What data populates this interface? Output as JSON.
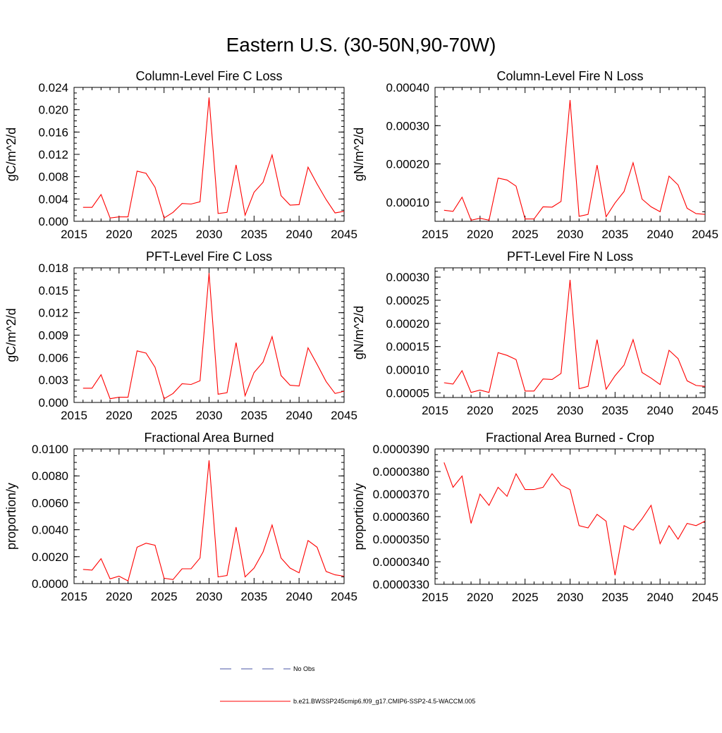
{
  "title": "Eastern U.S. (30-50N,90-70W)",
  "colors": {
    "series": "#ff0000",
    "no_obs": "#4a55a5",
    "axis": "#000000"
  },
  "legend": {
    "no_obs_label": "No Obs",
    "series_label": "b.e21.BWSSP245cmip6.f09_g17.CMIP6-SSP2-4.5-WACCM.005"
  },
  "chart_data": [
    {
      "id": "col-fire-c-loss",
      "type": "line",
      "title": "Column-Level Fire C Loss",
      "ylabel": "gC/m^2/d",
      "xlabel": "",
      "xlim": [
        2015,
        2045
      ],
      "ylim": [
        0,
        0.024
      ],
      "xticks": [
        "2015",
        "2020",
        "2025",
        "2030",
        "2035",
        "2040",
        "2045"
      ],
      "yticks": [
        "0.000",
        "0.004",
        "0.008",
        "0.012",
        "0.016",
        "0.020",
        "0.024"
      ],
      "x": [
        2016,
        2017,
        2018,
        2019,
        2020,
        2021,
        2022,
        2023,
        2024,
        2025,
        2026,
        2027,
        2028,
        2029,
        2030,
        2031,
        2032,
        2033,
        2034,
        2035,
        2036,
        2037,
        2038,
        2039,
        2040,
        2041,
        2042,
        2043,
        2044,
        2045
      ],
      "values": [
        0.0025,
        0.0025,
        0.0048,
        0.0006,
        0.0008,
        0.0008,
        0.009,
        0.0086,
        0.0061,
        0.0006,
        0.0016,
        0.0032,
        0.0031,
        0.0035,
        0.0222,
        0.0014,
        0.0016,
        0.0101,
        0.0011,
        0.0052,
        0.007,
        0.0119,
        0.0046,
        0.0029,
        0.003,
        0.0097,
        0.0067,
        0.0039,
        0.0015,
        0.0018
      ]
    },
    {
      "id": "col-fire-n-loss",
      "type": "line",
      "title": "Column-Level Fire N Loss",
      "ylabel": "gN/m^2/d",
      "xlabel": "",
      "xlim": [
        2015,
        2045
      ],
      "ylim": [
        5e-05,
        0.0004
      ],
      "xticks": [
        "2015",
        "2020",
        "2025",
        "2030",
        "2035",
        "2040",
        "2045"
      ],
      "yticks": [
        "0.00010",
        "0.00020",
        "0.00030",
        "0.00040"
      ],
      "ytick_values": [
        0.0001,
        0.0002,
        0.0003,
        0.0004
      ],
      "x": [
        2016,
        2017,
        2018,
        2019,
        2020,
        2021,
        2022,
        2023,
        2024,
        2025,
        2026,
        2027,
        2028,
        2029,
        2030,
        2031,
        2032,
        2033,
        2034,
        2035,
        2036,
        2037,
        2038,
        2039,
        2040,
        2041,
        2042,
        2043,
        2044,
        2045
      ],
      "values": [
        7.9e-05,
        7.6e-05,
        0.000113,
        5.3e-05,
        5.8e-05,
        5.3e-05,
        0.000163,
        0.000158,
        0.000142,
        5.6e-05,
        5.6e-05,
        8.8e-05,
        8.7e-05,
        0.000102,
        0.000367,
        6.3e-05,
        6.8e-05,
        0.000197,
        6.2e-05,
        9.8e-05,
        0.000128,
        0.000203,
        0.000108,
        8.8e-05,
        7.5e-05,
        0.000168,
        0.000145,
        8.4e-05,
        7e-05,
        6.8e-05
      ]
    },
    {
      "id": "pft-fire-c-loss",
      "type": "line",
      "title": "PFT-Level Fire C Loss",
      "ylabel": "gC/m^2/d",
      "xlabel": "",
      "xlim": [
        2015,
        2045
      ],
      "ylim": [
        0,
        0.018
      ],
      "xticks": [
        "2015",
        "2020",
        "2025",
        "2030",
        "2035",
        "2040",
        "2045"
      ],
      "yticks": [
        "0.000",
        "0.003",
        "0.006",
        "0.009",
        "0.012",
        "0.015",
        "0.018"
      ],
      "x": [
        2016,
        2017,
        2018,
        2019,
        2020,
        2021,
        2022,
        2023,
        2024,
        2025,
        2026,
        2027,
        2028,
        2029,
        2030,
        2031,
        2032,
        2033,
        2034,
        2035,
        2036,
        2037,
        2038,
        2039,
        2040,
        2041,
        2042,
        2043,
        2044,
        2045
      ],
      "values": [
        0.0019,
        0.0019,
        0.0037,
        0.0005,
        0.0007,
        0.0007,
        0.0069,
        0.0066,
        0.0047,
        0.0005,
        0.0012,
        0.0025,
        0.0024,
        0.0029,
        0.0173,
        0.0011,
        0.0013,
        0.008,
        0.0009,
        0.004,
        0.0054,
        0.0088,
        0.0036,
        0.0023,
        0.0022,
        0.0073,
        0.0051,
        0.0028,
        0.0012,
        0.0015
      ]
    },
    {
      "id": "pft-fire-n-loss",
      "type": "line",
      "title": "PFT-Level Fire N Loss",
      "ylabel": "gN/m^2/d",
      "xlabel": "",
      "xlim": [
        2015,
        2045
      ],
      "ylim": [
        4e-05,
        0.00032
      ],
      "xticks": [
        "2015",
        "2020",
        "2025",
        "2030",
        "2035",
        "2040",
        "2045"
      ],
      "yticks": [
        "0.00005",
        "0.00010",
        "0.00015",
        "0.00020",
        "0.00025",
        "0.00030"
      ],
      "ytick_values": [
        5e-05,
        0.0001,
        0.00015,
        0.0002,
        0.00025,
        0.0003
      ],
      "x": [
        2016,
        2017,
        2018,
        2019,
        2020,
        2021,
        2022,
        2023,
        2024,
        2025,
        2026,
        2027,
        2028,
        2029,
        2030,
        2031,
        2032,
        2033,
        2034,
        2035,
        2036,
        2037,
        2038,
        2039,
        2040,
        2041,
        2042,
        2043,
        2044,
        2045
      ],
      "values": [
        7.2e-05,
        6.9e-05,
        9.8e-05,
        5.1e-05,
        5.6e-05,
        5.1e-05,
        0.000137,
        0.000131,
        0.000122,
        5.4e-05,
        5.4e-05,
        8e-05,
        7.9e-05,
        9.2e-05,
        0.000294,
        5.9e-05,
        6.4e-05,
        0.000165,
        5.8e-05,
        8.7e-05,
        0.00011,
        0.000165,
        9.4e-05,
        8.2e-05,
        6.8e-05,
        0.000142,
        0.000124,
        7.6e-05,
        6.6e-05,
        6.4e-05
      ]
    },
    {
      "id": "frac-area-burned",
      "type": "line",
      "title": "Fractional Area Burned",
      "ylabel": "proportion/y",
      "xlabel": "",
      "xlim": [
        2015,
        2045
      ],
      "ylim": [
        0,
        0.01
      ],
      "xticks": [
        "2015",
        "2020",
        "2025",
        "2030",
        "2035",
        "2040",
        "2045"
      ],
      "yticks": [
        "0.0000",
        "0.0020",
        "0.0040",
        "0.0060",
        "0.0080",
        "0.0100"
      ],
      "x": [
        2016,
        2017,
        2018,
        2019,
        2020,
        2021,
        2022,
        2023,
        2024,
        2025,
        2026,
        2027,
        2028,
        2029,
        2030,
        2031,
        2032,
        2033,
        2034,
        2035,
        2036,
        2037,
        2038,
        2039,
        2040,
        2041,
        2042,
        2043,
        2044,
        2045
      ],
      "values": [
        0.00105,
        0.001,
        0.00185,
        0.00035,
        0.00055,
        0.0002,
        0.0027,
        0.003,
        0.00285,
        0.0004,
        0.0003,
        0.0011,
        0.0011,
        0.0019,
        0.00915,
        0.0005,
        0.0006,
        0.0042,
        0.0005,
        0.00115,
        0.00235,
        0.00435,
        0.0019,
        0.00115,
        0.0008,
        0.0032,
        0.0027,
        0.0009,
        0.00065,
        0.00055
      ]
    },
    {
      "id": "frac-area-burned-crop",
      "type": "line",
      "title": "Fractional Area Burned - Crop",
      "ylabel": "proportion/y",
      "xlabel": "",
      "xlim": [
        2015,
        2045
      ],
      "ylim": [
        3.3e-05,
        3.9e-05
      ],
      "xticks": [
        "2015",
        "2020",
        "2025",
        "2030",
        "2035",
        "2040",
        "2045"
      ],
      "yticks": [
        "0.0000330",
        "0.0000340",
        "0.0000350",
        "0.0000360",
        "0.0000370",
        "0.0000380",
        "0.0000390"
      ],
      "x": [
        2016,
        2017,
        2018,
        2019,
        2020,
        2021,
        2022,
        2023,
        2024,
        2025,
        2026,
        2027,
        2028,
        2029,
        2030,
        2031,
        2032,
        2033,
        2034,
        2035,
        2036,
        2037,
        2038,
        2039,
        2040,
        2041,
        2042,
        2043,
        2044,
        2045
      ],
      "values": [
        3.84e-05,
        3.73e-05,
        3.78e-05,
        3.57e-05,
        3.7e-05,
        3.65e-05,
        3.73e-05,
        3.69e-05,
        3.79e-05,
        3.72e-05,
        3.72e-05,
        3.73e-05,
        3.79e-05,
        3.74e-05,
        3.72e-05,
        3.56e-05,
        3.55e-05,
        3.61e-05,
        3.58e-05,
        3.34e-05,
        3.56e-05,
        3.54e-05,
        3.59e-05,
        3.65e-05,
        3.48e-05,
        3.56e-05,
        3.5e-05,
        3.57e-05,
        3.56e-05,
        3.58e-05
      ]
    }
  ]
}
